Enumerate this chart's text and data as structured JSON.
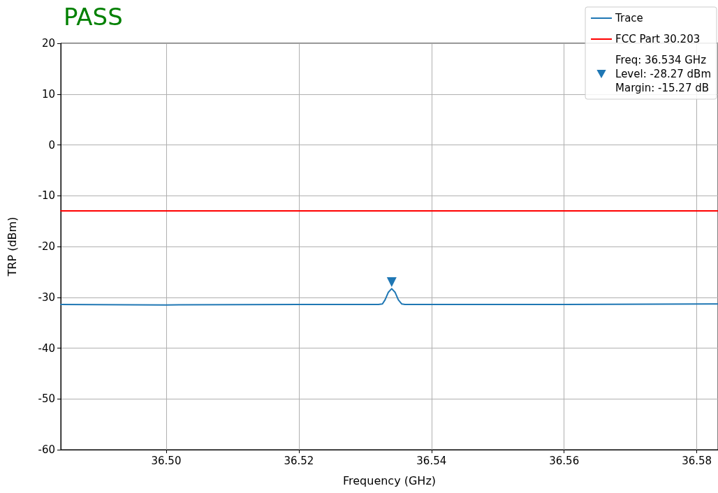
{
  "chart_data": {
    "type": "line",
    "title": "PASS",
    "xlabel": "Frequency (GHz)",
    "ylabel": "TRP (dBm)",
    "xlim": [
      36.4841,
      36.5832
    ],
    "xticks": [
      {
        "value": 36.5,
        "label": "36.50"
      },
      {
        "value": 36.52,
        "label": "36.52"
      },
      {
        "value": 36.54,
        "label": "36.54"
      },
      {
        "value": 36.56,
        "label": "36.56"
      },
      {
        "value": 36.58,
        "label": "36.58"
      }
    ],
    "ylim": [
      -60,
      20
    ],
    "yticks": [
      -60,
      -50,
      -40,
      -30,
      -20,
      -10,
      0,
      10,
      20
    ],
    "grid": true,
    "legend": "top right",
    "marker": "none",
    "line_style": "solid",
    "series": [
      {
        "name": "Trace",
        "color": "#1f77b4",
        "x": [
          36.4841,
          36.5,
          36.52,
          36.532,
          36.5326,
          36.533,
          36.5335,
          36.534,
          36.5345,
          36.535,
          36.5355,
          36.536,
          36.56,
          36.5832
        ],
        "values": [
          -31.4,
          -31.5,
          -31.4,
          -31.4,
          -31.3,
          -30.5,
          -29.0,
          -28.3,
          -29.0,
          -30.5,
          -31.3,
          -31.4,
          -31.4,
          -31.3
        ]
      },
      {
        "name": "FCC Part 30.203",
        "color": "#ff0000",
        "x": [
          36.4841,
          36.5832
        ],
        "values": [
          -13,
          -13
        ]
      },
      {
        "name": "Freq: 36.534 GHz\nLevel: -28.27 dBm\nMargin: -15.27 dB",
        "type": "scatter",
        "marker": "triangle",
        "color": "#1f77b4",
        "x": [
          36.534
        ],
        "values": [
          -27.0
        ]
      }
    ]
  }
}
